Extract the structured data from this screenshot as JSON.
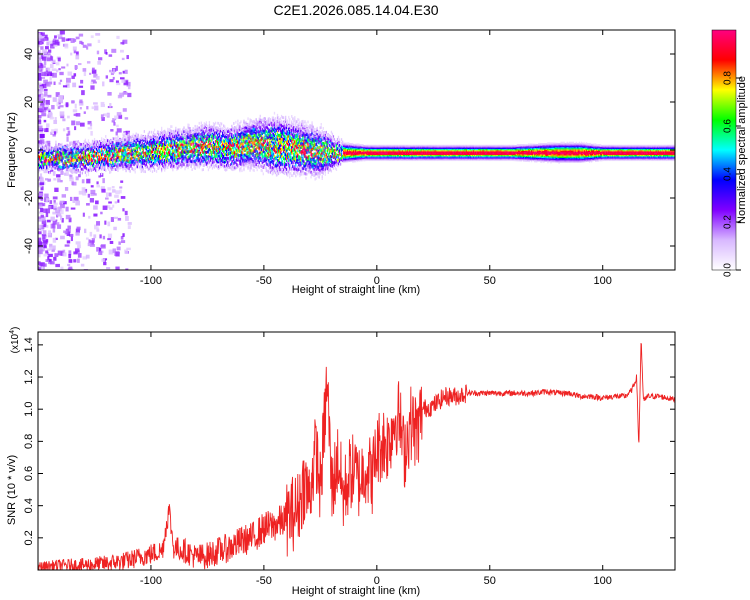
{
  "title": "C2E1.2026.085.14.04.E30",
  "chart_data": [
    {
      "type": "heatmap",
      "xlabel": "Height of straight line (km)",
      "ylabel": "Frequency (Hz)",
      "xlim": [
        -150,
        132
      ],
      "ylim": [
        -50,
        50
      ],
      "xticks": [
        -100,
        -50,
        0,
        50,
        100
      ],
      "yticks": [
        -40,
        -20,
        0,
        20,
        40
      ],
      "colorbar": {
        "label": "Normalized spectral amplitude",
        "range": [
          0,
          1
        ],
        "ticks": [
          "0.0",
          "0.2",
          "0.4",
          "0.6",
          "0.8"
        ],
        "colormap": [
          "#ffffff",
          "#d8b8ff",
          "#8000ff",
          "#0000ff",
          "#00ffff",
          "#00ff00",
          "#ffff00",
          "#ff0000",
          "#ff0080"
        ]
      },
      "ridge": {
        "x": [
          -148,
          -130,
          -110,
          -95,
          -85,
          -75,
          -65,
          -55,
          -45,
          -35,
          -25,
          -15,
          -5,
          0,
          10,
          20,
          40,
          60,
          80,
          90,
          100,
          115,
          125,
          132
        ],
        "freq": [
          -3,
          -3,
          -1,
          0,
          1,
          2,
          1,
          3,
          2,
          1,
          -1,
          -1,
          -1,
          -1,
          -1,
          -1,
          -1,
          -1,
          -1,
          -1,
          -1,
          -1,
          -1,
          -1
        ],
        "spread": [
          5,
          6,
          7,
          8,
          8,
          9,
          9,
          10,
          12,
          11,
          10,
          4,
          3,
          3,
          3,
          3,
          3,
          3,
          4,
          4,
          3,
          3,
          3,
          3
        ]
      }
    },
    {
      "type": "line",
      "xlabel": "Height of straight line (km)",
      "ylabel": "SNR (10 * v/v)",
      "yscale_label": "(x10",
      "yscale_exp": "4",
      "xlim": [
        -150,
        132
      ],
      "ylim": [
        0,
        1.48
      ],
      "xticks": [
        -100,
        -50,
        0,
        50,
        100
      ],
      "yticks": [
        0.2,
        0.4,
        0.6,
        0.8,
        1.0,
        1.2,
        1.4
      ],
      "color": "#ee2222",
      "series": [
        {
          "x": [
            -150,
            -140,
            -130,
            -120,
            -110,
            -100,
            -95,
            -92,
            -90,
            -85,
            -80,
            -75,
            -70,
            -65,
            -60,
            -55,
            -50,
            -45,
            -40,
            -35,
            -32,
            -30,
            -27,
            -25,
            -22,
            -20,
            -17,
            -15,
            -12,
            -10,
            -8,
            -5,
            -2,
            0,
            3,
            5,
            8,
            10,
            12,
            15,
            18,
            20,
            25,
            30,
            35,
            40,
            45,
            50,
            55,
            60,
            65,
            70,
            75,
            80,
            85,
            90,
            95,
            100,
            105,
            110,
            113,
            115,
            116,
            117,
            118,
            120,
            125,
            132
          ],
          "y": [
            0.02,
            0.03,
            0.03,
            0.04,
            0.06,
            0.1,
            0.12,
            0.38,
            0.14,
            0.12,
            0.08,
            0.09,
            0.12,
            0.14,
            0.18,
            0.2,
            0.26,
            0.28,
            0.32,
            0.38,
            0.55,
            0.45,
            0.75,
            0.5,
            1.18,
            0.5,
            0.7,
            0.45,
            0.6,
            0.62,
            0.55,
            0.65,
            0.58,
            0.75,
            0.8,
            0.78,
            0.95,
            0.95,
            0.72,
            0.92,
            0.85,
            1.0,
            1.02,
            1.08,
            1.08,
            1.1,
            1.1,
            1.1,
            1.1,
            1.1,
            1.1,
            1.1,
            1.11,
            1.1,
            1.1,
            1.08,
            1.08,
            1.07,
            1.08,
            1.08,
            1.12,
            1.2,
            0.76,
            1.45,
            1.05,
            1.08,
            1.08,
            1.06
          ]
        }
      ]
    }
  ]
}
